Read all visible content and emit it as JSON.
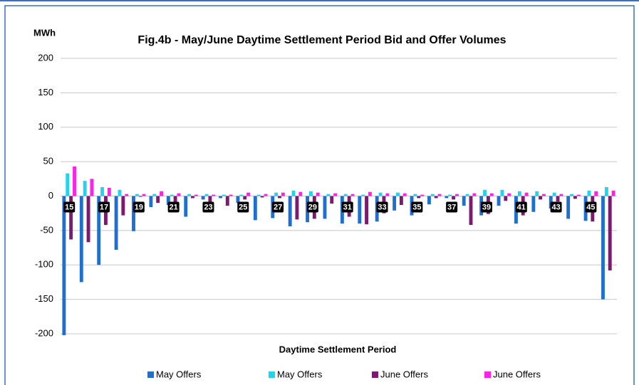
{
  "chart_data": {
    "type": "bar",
    "title": "Fig.4b - May/June Daytime Settlement Period Bid and Offer Volumes",
    "y_label": "MWh",
    "x_label": "Daytime Settlement Period",
    "categories": [
      "15",
      null,
      "17",
      null,
      "19",
      null,
      "21",
      null,
      "23",
      null,
      "25",
      null,
      "27",
      null,
      "29",
      null,
      "31",
      null,
      "33",
      null,
      "35",
      null,
      "37",
      null,
      "39",
      null,
      "41",
      null,
      "43",
      null,
      "45",
      null
    ],
    "series": [
      {
        "name": "May Offers",
        "color": "#1f6fd0",
        "values": [
          -202,
          -125,
          -100,
          -78,
          -51,
          -16,
          -13,
          -30,
          -5,
          -3,
          -10,
          -35,
          -32,
          -44,
          -38,
          -33,
          -40,
          -40,
          -37,
          -21,
          -28,
          -12,
          -3,
          -14,
          -28,
          -14,
          -40,
          -23,
          -18,
          -33,
          -36,
          -150
        ]
      },
      {
        "name": "May Offers",
        "color": "#22d3f0",
        "values": [
          33,
          22,
          13,
          9,
          3,
          3,
          2,
          3,
          3,
          2,
          2,
          2,
          5,
          8,
          7,
          3,
          3,
          2,
          5,
          5,
          3,
          3,
          2,
          3,
          9,
          9,
          7,
          7,
          5,
          3,
          8,
          13
        ]
      },
      {
        "name": "June Offers",
        "color": "#7b1a6e",
        "values": [
          -63,
          -67,
          -42,
          -28,
          -1,
          -10,
          -17,
          -3,
          -12,
          -14,
          -5,
          -2,
          -3,
          -34,
          -33,
          -11,
          -30,
          -41,
          -25,
          -13,
          -3,
          -3,
          -5,
          -42,
          -26,
          -7,
          -28,
          -5,
          -8,
          -4,
          -37,
          -108
        ]
      },
      {
        "name": "June Offers",
        "color": "#ff22e6",
        "values": [
          43,
          25,
          12,
          3,
          3,
          7,
          4,
          2,
          2,
          2,
          5,
          3,
          5,
          6,
          5,
          4,
          3,
          6,
          4,
          4,
          2,
          3,
          3,
          4,
          4,
          4,
          5,
          3,
          3,
          2,
          7,
          8
        ]
      }
    ],
    "ylim": [
      -200,
      200
    ],
    "yticks": [
      -200,
      -150,
      -100,
      -50,
      0,
      50,
      100,
      150,
      200
    ],
    "grid": true,
    "legend": "bottom"
  }
}
